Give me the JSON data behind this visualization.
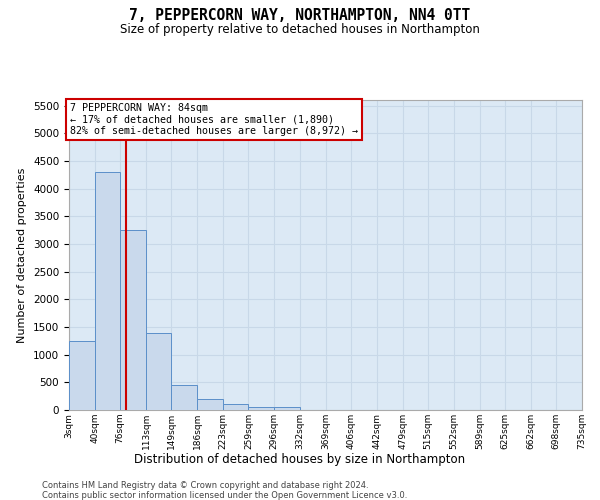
{
  "title": "7, PEPPERCORN WAY, NORTHAMPTON, NN4 0TT",
  "subtitle": "Size of property relative to detached houses in Northampton",
  "xlabel": "Distribution of detached houses by size in Northampton",
  "ylabel": "Number of detached properties",
  "property_size": 84,
  "annotation_line1": "7 PEPPERCORN WAY: 84sqm",
  "annotation_line2": "← 17% of detached houses are smaller (1,890)",
  "annotation_line3": "82% of semi-detached houses are larger (8,972) →",
  "footer_line1": "Contains HM Land Registry data © Crown copyright and database right 2024.",
  "footer_line2": "Contains public sector information licensed under the Open Government Licence v3.0.",
  "bar_color": "#c9d9ec",
  "bar_edge_color": "#5b8fc9",
  "vline_color": "#cc0000",
  "annotation_box_color": "#cc0000",
  "annotation_text_color": "#000000",
  "grid_color": "#c8d8e8",
  "background_color": "#dce9f5",
  "bins": [
    3,
    40,
    76,
    113,
    149,
    186,
    223,
    259,
    296,
    332,
    369,
    406,
    442,
    479,
    515,
    552,
    589,
    625,
    662,
    698,
    735
  ],
  "bin_labels": [
    "3sqm",
    "40sqm",
    "76sqm",
    "113sqm",
    "149sqm",
    "186sqm",
    "223sqm",
    "259sqm",
    "296sqm",
    "332sqm",
    "369sqm",
    "406sqm",
    "442sqm",
    "479sqm",
    "515sqm",
    "552sqm",
    "589sqm",
    "625sqm",
    "662sqm",
    "698sqm",
    "735sqm"
  ],
  "counts": [
    1250,
    4300,
    3250,
    1400,
    450,
    200,
    100,
    60,
    50,
    0,
    0,
    0,
    0,
    0,
    0,
    0,
    0,
    0,
    0,
    0
  ],
  "ylim": [
    0,
    5600
  ],
  "yticks": [
    0,
    500,
    1000,
    1500,
    2000,
    2500,
    3000,
    3500,
    4000,
    4500,
    5000,
    5500
  ]
}
